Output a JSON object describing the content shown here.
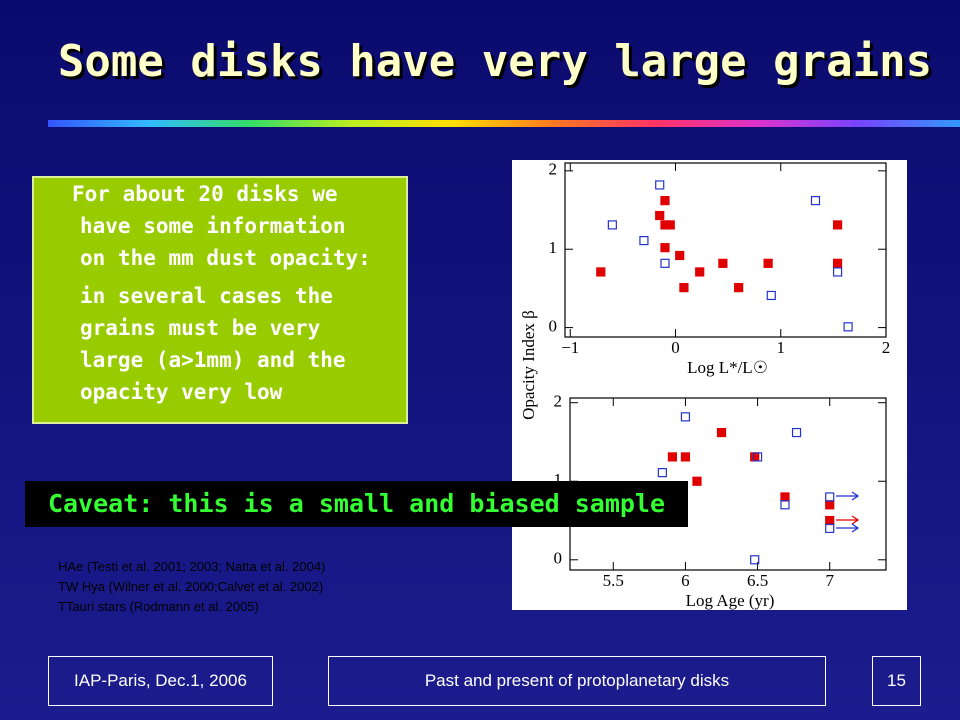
{
  "title": "Some disks have very large grains",
  "box": {
    "paragraphs": [
      [
        "For about 20 disks we",
        "have some information",
        "on the mm dust opacity:"
      ],
      [
        "in several cases the",
        "grains must be very",
        "large (a>1mm) and the",
        "opacity very low"
      ]
    ]
  },
  "caveat": "Caveat: this is a small and biased sample",
  "references": [
    "HAe (Testi et al. 2001; 2003; Natta et al. 2004)",
    "TW Hya (Wilner et al. 2000;Calvet et al. 2002)",
    "TTauri stars (Rodmann et al. 2005)"
  ],
  "y_axis_label": "Opacity Index β",
  "footer": {
    "left": "IAP-Paris, Dec.1, 2006",
    "center": "Past and present of protoplanetary disks",
    "page": "15"
  },
  "chart_data": [
    {
      "type": "scatter",
      "x_label": "Log L*/L☉",
      "xlim": [
        -1.05,
        2
      ],
      "ylim": [
        -0.12,
        2.1
      ],
      "xticks": [
        {
          "value": -1,
          "label": "−1"
        },
        0,
        1,
        2
      ],
      "yticks": [
        0,
        1,
        2
      ],
      "series": [
        {
          "marker": "filled",
          "color": "#e00000",
          "x": [
            -0.71,
            -0.1,
            -0.15,
            -0.1,
            -0.05,
            -0.1,
            0.04,
            0.08,
            0.23,
            0.45,
            0.6,
            0.88,
            1.54,
            1.54
          ],
          "values": [
            0.71,
            1.62,
            1.43,
            1.31,
            1.31,
            1.02,
            0.92,
            0.51,
            0.71,
            0.82,
            0.51,
            0.82,
            1.31,
            0.82
          ]
        },
        {
          "marker": "open",
          "color": "#2233cc",
          "x": [
            -0.15,
            -0.6,
            -0.3,
            -0.1,
            0.91,
            1.33,
            1.54,
            1.64
          ],
          "values": [
            1.82,
            1.31,
            1.11,
            0.82,
            0.41,
            1.62,
            0.71,
            0.01
          ]
        }
      ]
    },
    {
      "type": "scatter",
      "x_label": "Log Age   (yr)",
      "xlim": [
        5.2,
        7.39
      ],
      "ylim": [
        -0.13,
        2.06
      ],
      "xticks": [
        5.5,
        6,
        6.5,
        7
      ],
      "yticks": [
        0,
        1,
        2
      ],
      "series": [
        {
          "marker": "filled",
          "color": "#e00000",
          "x": [
            5.91,
            6.0,
            6.08,
            6.25,
            6.48,
            6.69,
            7.0,
            7.0
          ],
          "values": [
            1.31,
            1.31,
            1.0,
            1.62,
            1.31,
            0.8,
            0.7,
            0.5
          ]
        },
        {
          "marker": "open",
          "color": "#2233cc",
          "x": [
            6.0,
            5.84,
            6.5,
            6.77,
            6.69,
            7.0,
            7.0,
            6.48
          ],
          "values": [
            1.82,
            1.11,
            1.31,
            1.62,
            0.7,
            0.8,
            0.4,
            0.0
          ]
        }
      ]
    }
  ]
}
